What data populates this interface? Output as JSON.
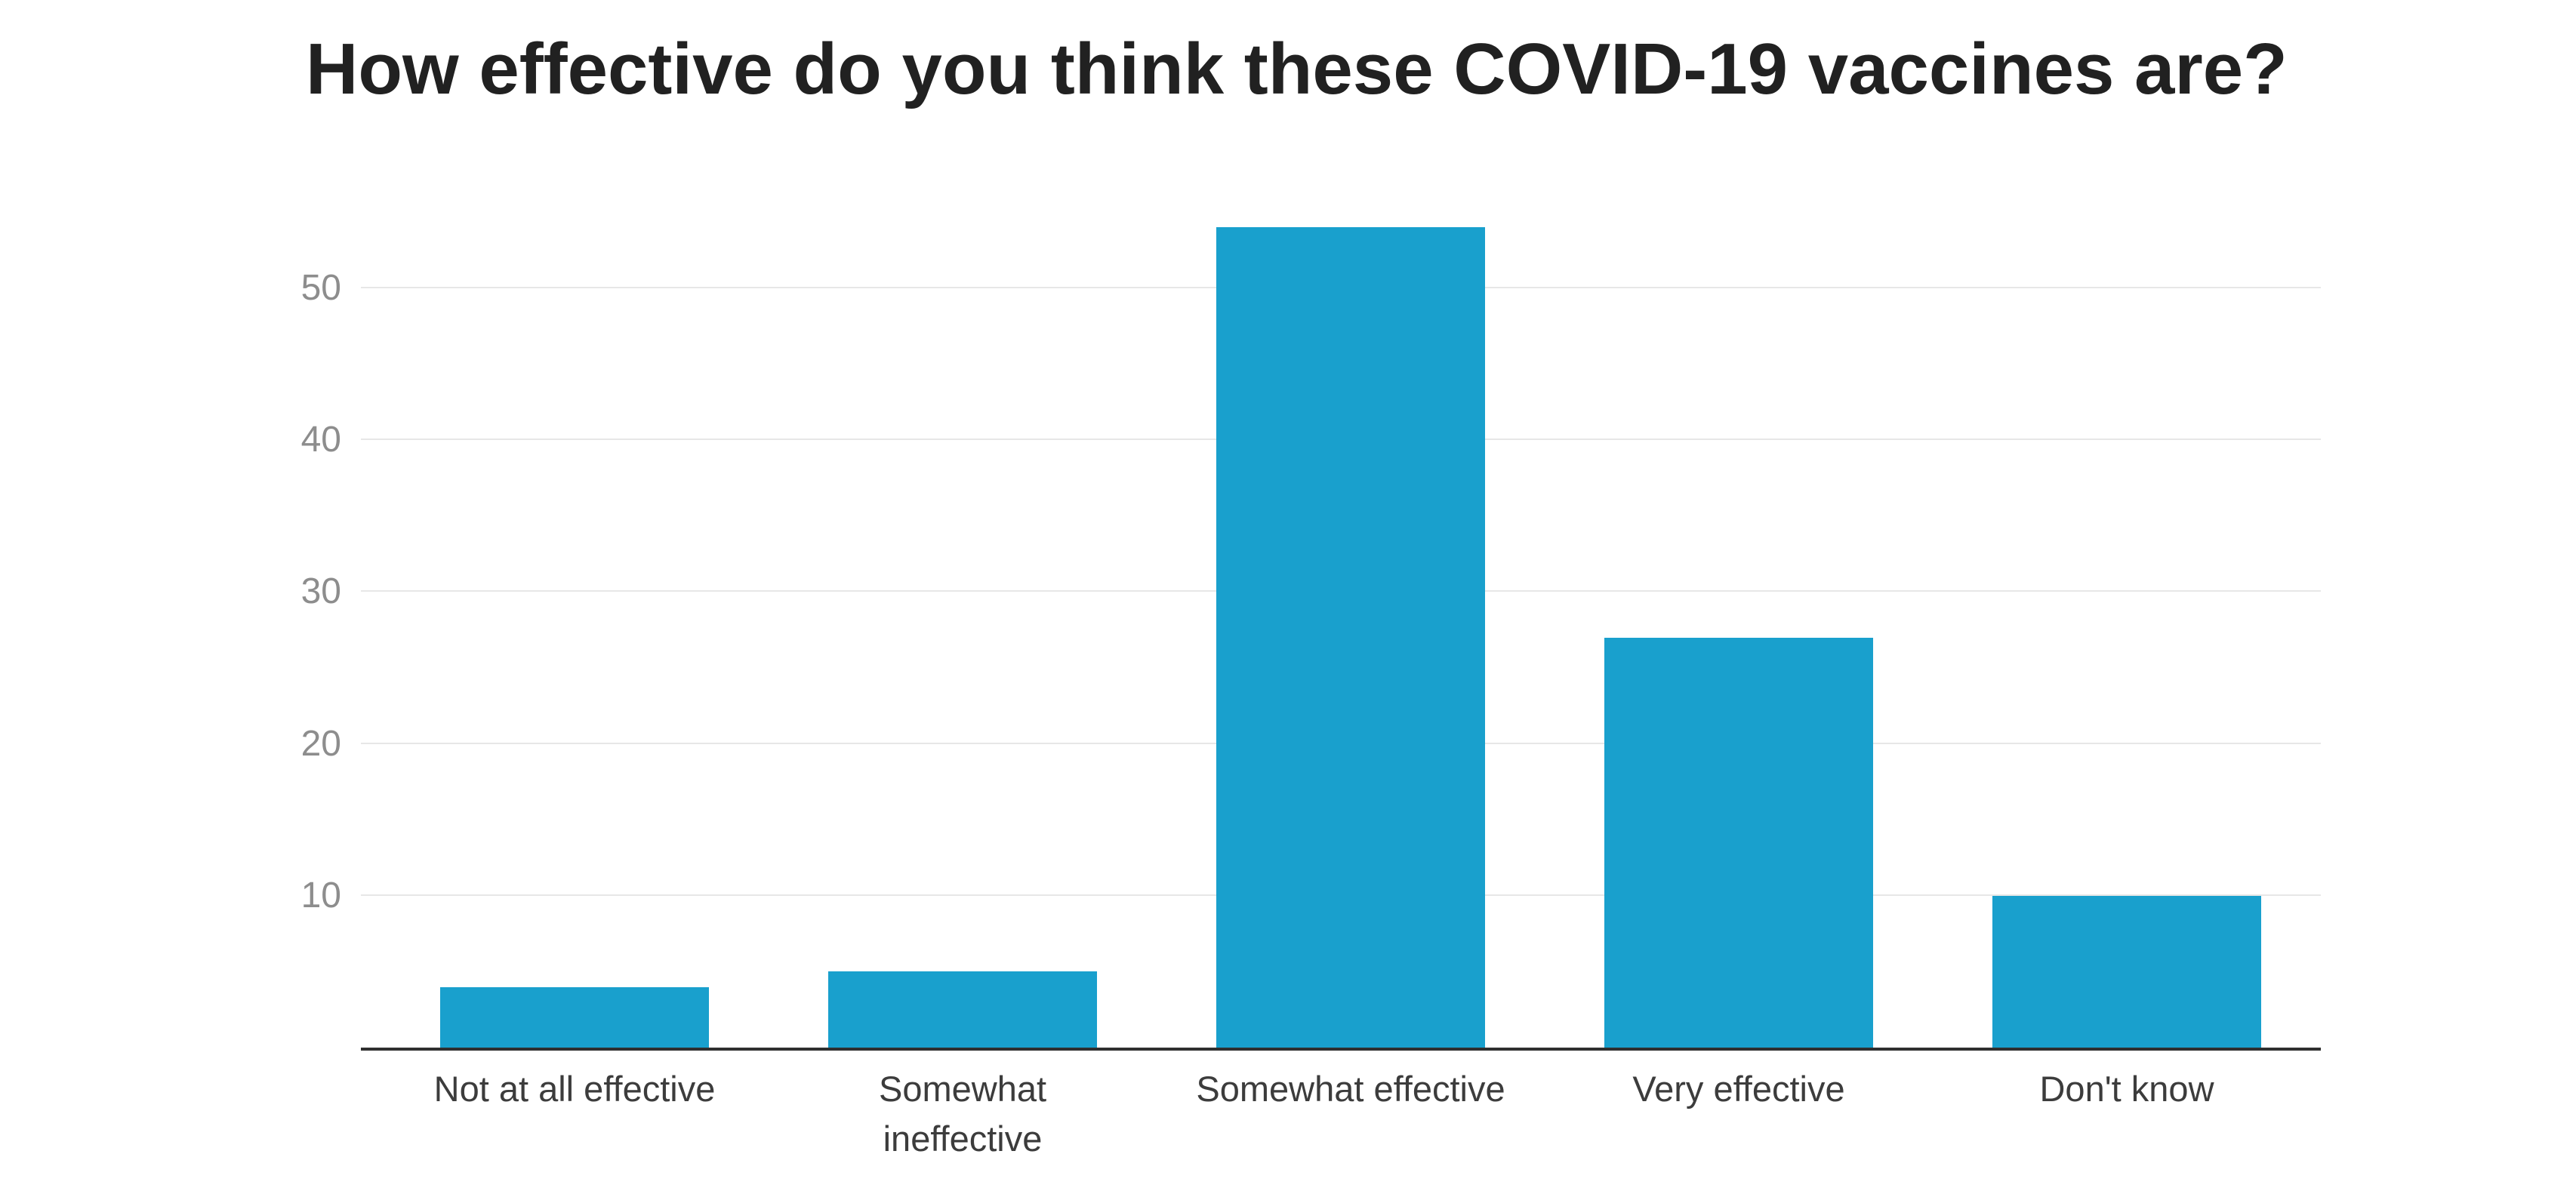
{
  "chart_data": {
    "type": "bar",
    "title": "How effective do you think these COVID-19 vaccines are?",
    "categories": [
      "Not at all effective",
      "Somewhat\nineffective",
      "Somewhat effective",
      "Very effective",
      "Don't know"
    ],
    "values": [
      4,
      5,
      54,
      27,
      10
    ],
    "y_ticks": [
      10,
      20,
      30,
      40,
      50
    ],
    "ylim": [
      0,
      56
    ],
    "xlabel": "",
    "ylabel": "",
    "grid": true,
    "legend": "none",
    "colors": {
      "bar": "#19a0cd",
      "gridline": "#e7e7e7",
      "axis_line": "#2f2f2f",
      "tick_label": "#8d8d8d",
      "category_label": "#3c3c3c",
      "title": "#212121",
      "background": "#ffffff"
    }
  }
}
